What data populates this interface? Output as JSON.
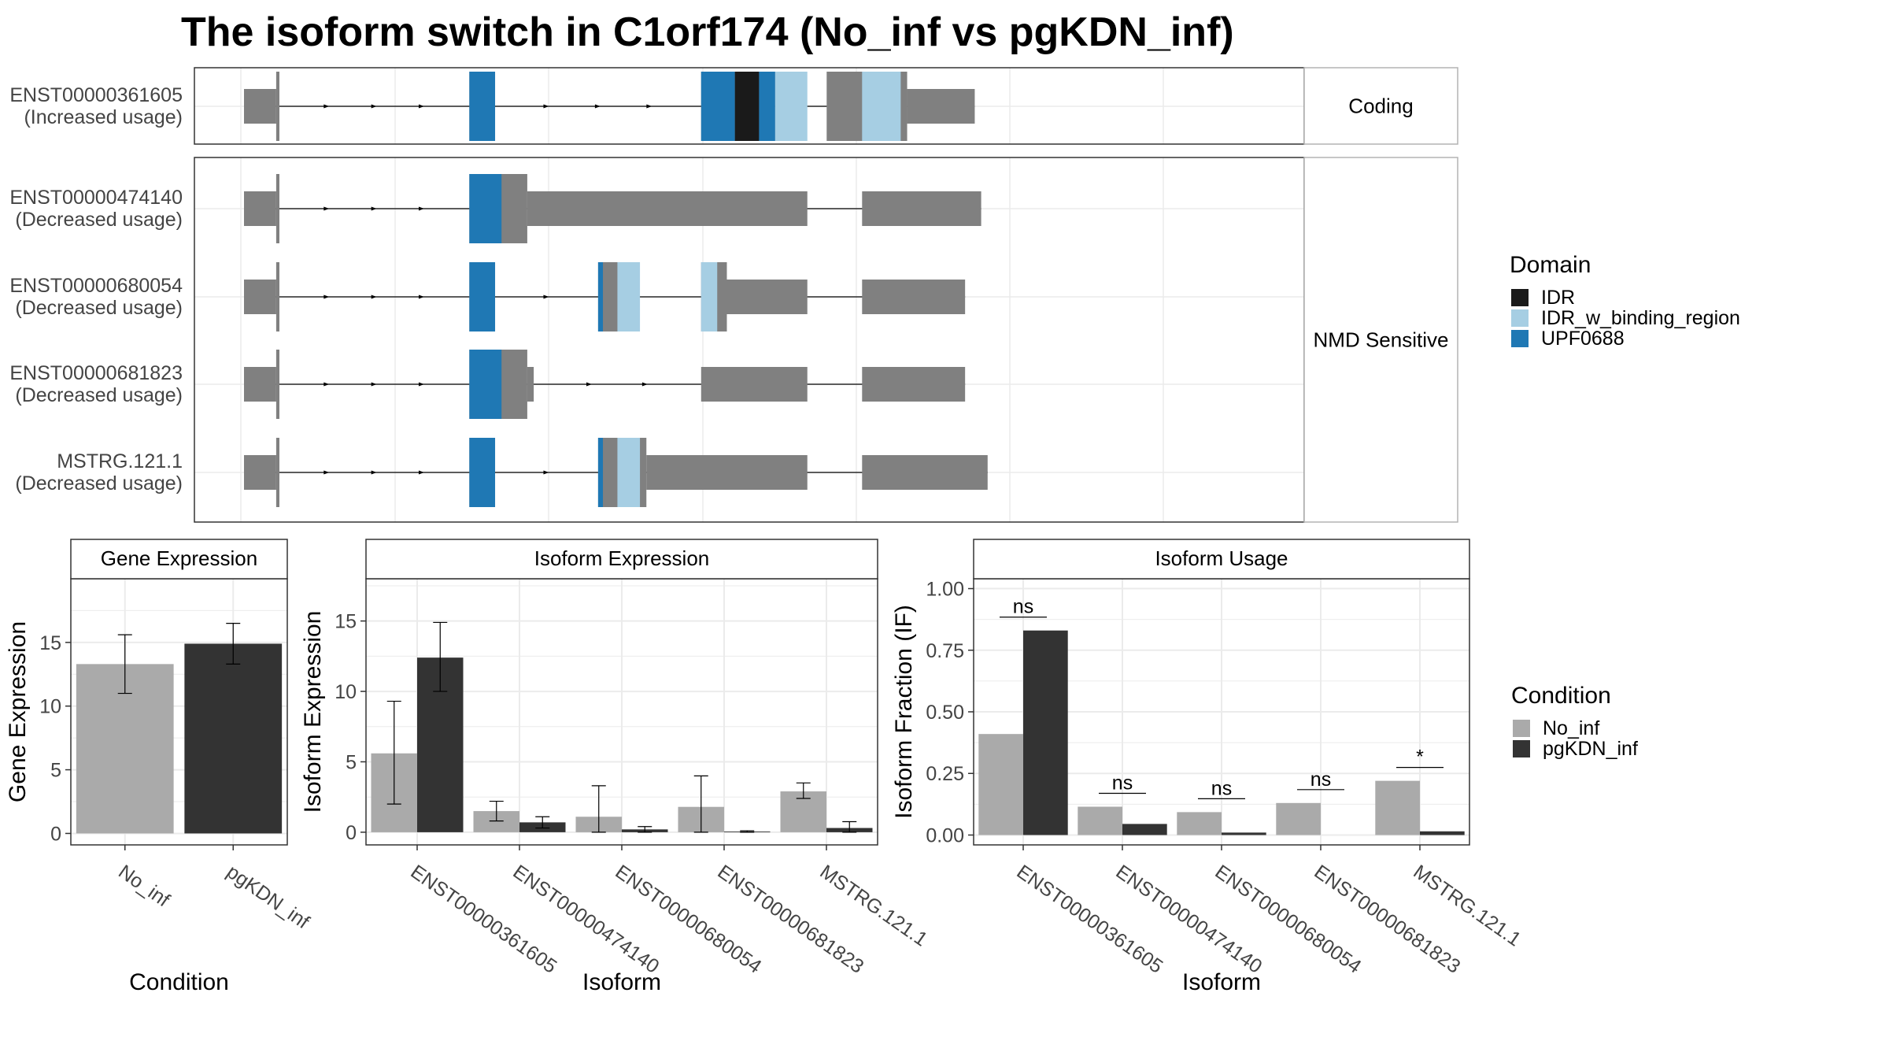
{
  "title": "The isoform switch in C1orf174 (No_inf vs pgKDN_inf)",
  "colors": {
    "intron": "#000000",
    "utr_exon": "#808080",
    "cds_exon": "#808080",
    "IDR": "#1a1a1a",
    "IDR_w_binding_region": "#a6cee3",
    "UPF0688": "#1f78b4",
    "No_inf": "#aaaaaa",
    "pgKDN_inf": "#333333",
    "panel_border": "#333333",
    "grid": "#ebebeb",
    "strip_border": "#b3b3b3"
  },
  "transcript_panel": {
    "groups": [
      {
        "strip": "Coding",
        "transcripts": [
          {
            "id": "ENST00000361605",
            "usage": "(Increased usage)",
            "span": [
              0.0,
              22.7
            ],
            "utr": [
              [
                0.0,
                1.0
              ],
              [
                20.6,
                22.7
              ]
            ],
            "cds": [
              [
                1.0,
                1.1
              ],
              [
                7.0,
                7.8
              ],
              [
                14.2,
                16.5
              ],
              [
                18.1,
                20.6
              ]
            ],
            "domains": [
              {
                "type": "UPF0688",
                "range": [
                  7.0,
                  7.8
                ]
              },
              {
                "type": "UPF0688",
                "range": [
                  14.2,
                  15.25
                ]
              },
              {
                "type": "IDR",
                "range": [
                  15.25,
                  16.0
                ]
              },
              {
                "type": "UPF0688",
                "range": [
                  16.0,
                  16.5
                ]
              },
              {
                "type": "IDR_w_binding_region",
                "range": [
                  16.5,
                  17.5
                ]
              },
              {
                "type": "IDR_w_binding_region",
                "range": [
                  19.2,
                  20.4
                ]
              }
            ]
          }
        ]
      },
      {
        "strip": "NMD Sensitive",
        "transcripts": [
          {
            "id": "ENST00000474140",
            "usage": "(Decreased usage)",
            "span": [
              0.0,
              22.9
            ],
            "utr": [
              [
                0.0,
                1.0
              ],
              [
                8.8,
                17.5
              ],
              [
                19.2,
                22.9
              ]
            ],
            "cds": [
              [
                1.0,
                1.1
              ],
              [
                7.0,
                8.8
              ]
            ],
            "domains": [
              {
                "type": "UPF0688",
                "range": [
                  7.0,
                  8.0
                ]
              }
            ]
          },
          {
            "id": "ENST00000680054",
            "usage": "(Decreased usage)",
            "span": [
              0.0,
              22.4
            ],
            "utr": [
              [
                0.0,
                1.0
              ],
              [
                15.0,
                17.5
              ],
              [
                19.2,
                22.4
              ]
            ],
            "cds": [
              [
                1.0,
                1.1
              ],
              [
                7.0,
                7.8
              ],
              [
                11.0,
                12.2
              ],
              [
                14.2,
                15.0
              ]
            ],
            "domains": [
              {
                "type": "UPF0688",
                "range": [
                  7.0,
                  7.8
                ]
              },
              {
                "type": "UPF0688",
                "range": [
                  11.0,
                  11.15
                ]
              },
              {
                "type": "IDR_w_binding_region",
                "range": [
                  11.6,
                  12.3
                ]
              },
              {
                "type": "IDR_w_binding_region",
                "range": [
                  14.2,
                  14.7
                ]
              }
            ]
          },
          {
            "id": "ENST00000681823",
            "usage": "(Decreased usage)",
            "span": [
              0.0,
              22.4
            ],
            "utr": [
              [
                0.0,
                1.0
              ],
              [
                8.8,
                9.0
              ],
              [
                14.2,
                17.5
              ],
              [
                19.2,
                22.4
              ]
            ],
            "cds": [
              [
                1.0,
                1.1
              ],
              [
                7.0,
                8.8
              ]
            ],
            "domains": [
              {
                "type": "UPF0688",
                "range": [
                  7.0,
                  8.0
                ]
              }
            ]
          },
          {
            "id": "MSTRG.121.1",
            "usage": "(Decreased usage)",
            "span": [
              0.0,
              23.1
            ],
            "utr": [
              [
                0.0,
                1.0
              ],
              [
                12.5,
                17.5
              ],
              [
                19.2,
                23.1
              ]
            ],
            "cds": [
              [
                1.0,
                1.1
              ],
              [
                7.0,
                7.8
              ],
              [
                11.0,
                12.5
              ]
            ],
            "domains": [
              {
                "type": "UPF0688",
                "range": [
                  7.0,
                  7.8
                ]
              },
              {
                "type": "UPF0688",
                "range": [
                  11.0,
                  11.15
                ]
              },
              {
                "type": "IDR_w_binding_region",
                "range": [
                  11.6,
                  12.3
                ]
              }
            ]
          }
        ]
      }
    ]
  },
  "legends": {
    "domain": {
      "title": "Domain",
      "entries": [
        "IDR",
        "IDR_w_binding_region",
        "UPF0688"
      ]
    },
    "condition": {
      "title": "Condition",
      "entries": [
        "No_inf",
        "pgKDN_inf"
      ]
    }
  },
  "chart_data": [
    {
      "type": "bar",
      "title": "Gene Expression",
      "xlabel": "Condition",
      "ylabel": "Gene Expression",
      "categories": [
        "No_inf",
        "pgKDN_inf"
      ],
      "values": [
        13.3,
        14.9
      ],
      "error_low": [
        11.0,
        13.3
      ],
      "error_high": [
        15.6,
        16.5
      ],
      "ylim": [
        -0.9,
        20.0
      ],
      "yticks": [
        0,
        5,
        10,
        15
      ],
      "grid": true
    },
    {
      "type": "bar",
      "title": "Isoform Expression",
      "xlabel": "Isoform",
      "ylabel": "Isoform Expression",
      "categories": [
        "ENST00000361605",
        "ENST00000474140",
        "ENST00000680054",
        "ENST00000681823",
        "MSTRG.121.1"
      ],
      "series": [
        {
          "name": "No_inf",
          "values": [
            5.6,
            1.5,
            1.1,
            1.8,
            2.9
          ],
          "error_low": [
            2.0,
            0.8,
            0.0,
            0.0,
            2.4
          ],
          "error_high": [
            9.3,
            2.2,
            3.3,
            4.0,
            3.5
          ]
        },
        {
          "name": "pgKDN_inf",
          "values": [
            12.4,
            0.7,
            0.2,
            0.05,
            0.3
          ],
          "error_low": [
            10.0,
            0.3,
            0.0,
            0.0,
            0.0
          ],
          "error_high": [
            14.9,
            1.1,
            0.4,
            0.1,
            0.75
          ]
        }
      ],
      "ylim": [
        -0.9,
        18.0
      ],
      "yticks": [
        0,
        5,
        10,
        15
      ],
      "grid": true
    },
    {
      "type": "bar",
      "title": "Isoform Usage",
      "xlabel": "Isoform",
      "ylabel": "Isoform Fraction (IF)",
      "categories": [
        "ENST00000361605",
        "ENST00000474140",
        "ENST00000680054",
        "ENST00000681823",
        "MSTRG.121.1"
      ],
      "series": [
        {
          "name": "No_inf",
          "values": [
            0.41,
            0.115,
            0.093,
            0.13,
            0.22
          ]
        },
        {
          "name": "pgKDN_inf",
          "values": [
            0.83,
            0.045,
            0.01,
            0.0,
            0.015
          ]
        }
      ],
      "significance": [
        "ns",
        "ns",
        "ns",
        "ns",
        "*"
      ],
      "ylim": [
        -0.04,
        1.04
      ],
      "yticks": [
        "0.00",
        "0.25",
        "0.50",
        "0.75",
        "1.00"
      ],
      "grid": true
    }
  ]
}
